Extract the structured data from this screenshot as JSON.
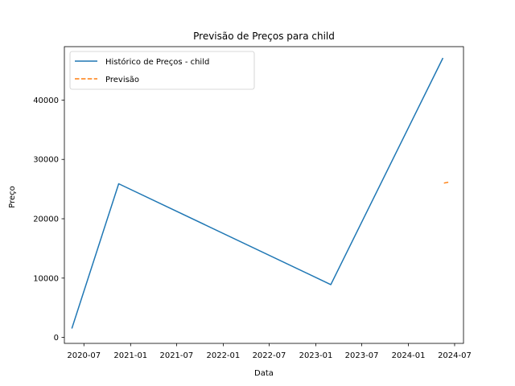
{
  "chart_data": {
    "type": "line",
    "title": "Previsão de Preços para child",
    "xlabel": "Data",
    "ylabel": "Preço",
    "x_ticks": [
      "2020-07",
      "2021-01",
      "2021-07",
      "2022-01",
      "2022-07",
      "2023-01",
      "2023-07",
      "2024-01",
      "2024-07"
    ],
    "y_ticks": [
      0,
      10000,
      20000,
      30000,
      40000
    ],
    "xlim": [
      "2020-04-15",
      "2024-08-05"
    ],
    "ylim": [
      -1000,
      49000
    ],
    "grid": false,
    "legend_position": "top-left",
    "series": [
      {
        "name": "Histórico de Preços - child",
        "color": "#1f77b4",
        "style": "solid",
        "points": [
          {
            "x": "2020-05-15",
            "y": 1600
          },
          {
            "x": "2020-11-15",
            "y": 25900
          },
          {
            "x": "2023-03-01",
            "y": 8900
          },
          {
            "x": "2024-05-15",
            "y": 47000
          }
        ]
      },
      {
        "name": "Previsão",
        "color": "#ff7f0e",
        "style": "dashed",
        "points": [
          {
            "x": "2024-05-20",
            "y": 26000
          },
          {
            "x": "2024-06-10",
            "y": 26200
          }
        ]
      }
    ]
  }
}
